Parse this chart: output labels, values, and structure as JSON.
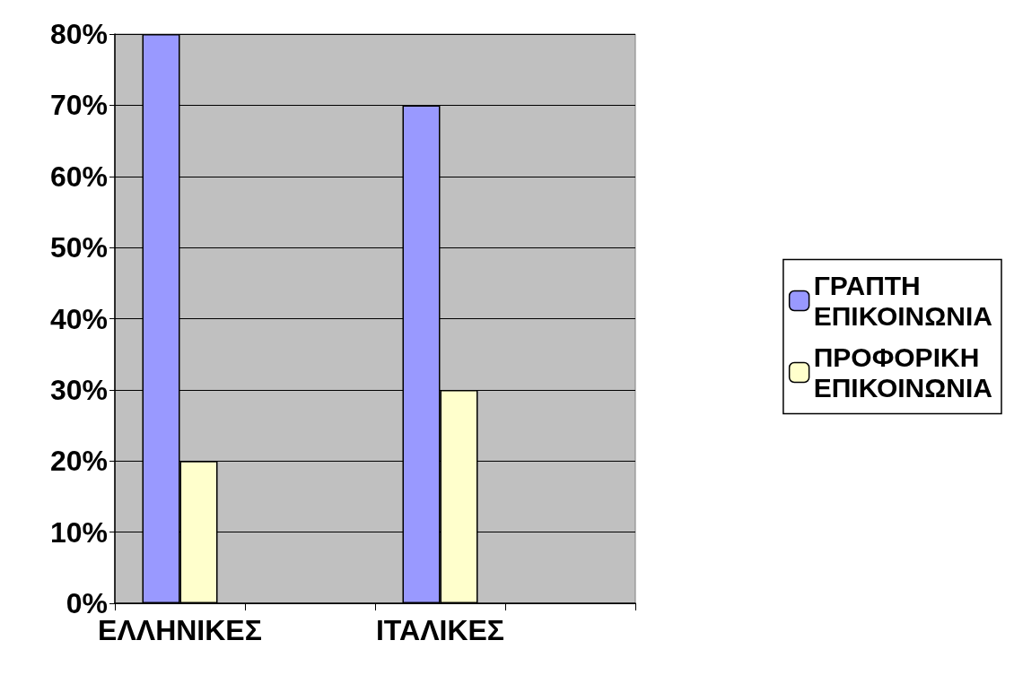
{
  "chart_data": {
    "type": "bar",
    "categories": [
      "ΕΛΛΗΝΙΚΕΣ",
      null,
      "ΙΤΑΛΙΚΕΣ",
      null
    ],
    "series": [
      {
        "name": "ΓΡΑΠΤΗ ΕΠΙΚΟΙΝΩΝΙΑ",
        "color": "#9999ff",
        "values": [
          80,
          null,
          70,
          null
        ]
      },
      {
        "name": "ΠΡΟΦΟΡΙΚΗ ΕΠΙΚΟΙΝΩΝΙΑ",
        "color": "#ffffcc",
        "values": [
          20,
          null,
          30,
          null
        ]
      }
    ],
    "ylim": [
      0,
      80
    ],
    "yticks": [
      {
        "value": 0,
        "label": "0%"
      },
      {
        "value": 10,
        "label": "10%"
      },
      {
        "value": 20,
        "label": "20%"
      },
      {
        "value": 30,
        "label": "30%"
      },
      {
        "value": 40,
        "label": "40%"
      },
      {
        "value": 50,
        "label": "50%"
      },
      {
        "value": 60,
        "label": "60%"
      },
      {
        "value": 70,
        "label": "70%"
      },
      {
        "value": 80,
        "label": "80%"
      }
    ],
    "grid": "y",
    "legend": "right"
  }
}
